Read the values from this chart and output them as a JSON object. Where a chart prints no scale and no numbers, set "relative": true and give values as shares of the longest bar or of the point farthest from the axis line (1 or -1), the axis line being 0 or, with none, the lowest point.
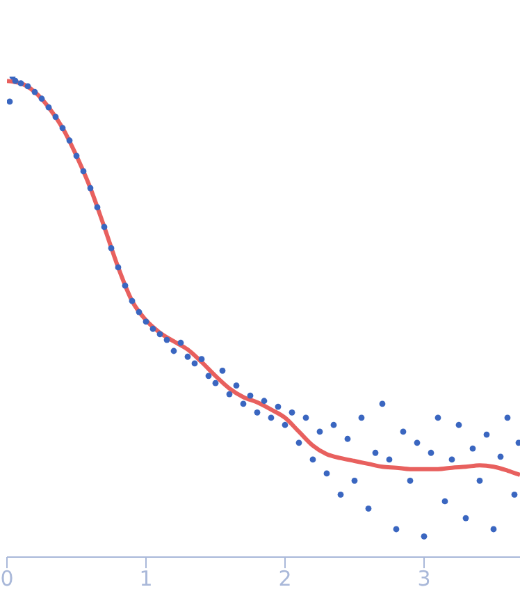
{
  "chart_data": {
    "type": "scatter",
    "relative": true,
    "xlim": [
      0,
      3.69
    ],
    "xticks": [
      0,
      1,
      2,
      3
    ],
    "grid": false,
    "legend": false,
    "x": [
      0.02,
      0.04,
      0.06,
      0.1,
      0.15,
      0.2,
      0.25,
      0.3,
      0.35,
      0.4,
      0.45,
      0.5,
      0.55,
      0.6,
      0.65,
      0.7,
      0.75,
      0.8,
      0.85,
      0.9,
      0.95,
      1.0,
      1.05,
      1.1,
      1.15,
      1.2,
      1.25,
      1.3,
      1.35,
      1.4,
      1.45,
      1.5,
      1.55,
      1.6,
      1.65,
      1.7,
      1.75,
      1.8,
      1.85,
      1.9,
      1.95,
      2.0,
      2.05,
      2.1,
      2.15,
      2.2,
      2.25,
      2.3,
      2.35,
      2.4,
      2.45,
      2.5,
      2.55,
      2.6,
      2.65,
      2.7,
      2.75,
      2.8,
      2.85,
      2.9,
      2.95,
      3.0,
      3.05,
      3.1,
      3.15,
      3.2,
      3.25,
      3.3,
      3.35,
      3.4,
      3.45,
      3.5,
      3.55,
      3.6,
      3.65,
      3.68
    ],
    "series": [
      {
        "marker": "circle",
        "color": "#3a66c0",
        "values": [
          0.948,
          1,
          0.991,
          0.986,
          0.98,
          0.968,
          0.954,
          0.936,
          0.916,
          0.893,
          0.867,
          0.835,
          0.803,
          0.768,
          0.728,
          0.687,
          0.643,
          0.603,
          0.565,
          0.533,
          0.51,
          0.49,
          0.475,
          0.464,
          0.452,
          0.429,
          0.446,
          0.417,
          0.403,
          0.412,
          0.377,
          0.362,
          0.388,
          0.339,
          0.357,
          0.319,
          0.336,
          0.301,
          0.325,
          0.29,
          0.313,
          0.275,
          0.301,
          0.238,
          0.29,
          0.203,
          0.261,
          0.174,
          0.275,
          0.13,
          0.246,
          0.159,
          0.29,
          0.101,
          0.217,
          0.319,
          0.203,
          0.058,
          0.261,
          0.159,
          0.238,
          0.043,
          0.217,
          0.29,
          0.116,
          0.203,
          0.275,
          0.081,
          0.226,
          0.159,
          0.255,
          0.058,
          0.209,
          0.29,
          0.13,
          0.238
        ]
      },
      {
        "type": "line",
        "color": "#e8605e",
        "x": [
          0,
          0.1,
          0.2,
          0.3,
          0.4,
          0.5,
          0.6,
          0.7,
          0.8,
          0.9,
          1.0,
          1.1,
          1.2,
          1.3,
          1.4,
          1.5,
          1.6,
          1.7,
          1.8,
          1.9,
          2.0,
          2.1,
          2.2,
          2.3,
          2.4,
          2.5,
          2.6,
          2.7,
          2.8,
          2.9,
          3.0,
          3.1,
          3.2,
          3.3,
          3.4,
          3.5,
          3.6,
          3.69
        ],
        "values": [
          0.991,
          0.986,
          0.968,
          0.936,
          0.893,
          0.835,
          0.768,
          0.687,
          0.603,
          0.533,
          0.493,
          0.467,
          0.449,
          0.432,
          0.406,
          0.377,
          0.351,
          0.333,
          0.322,
          0.307,
          0.29,
          0.261,
          0.232,
          0.214,
          0.206,
          0.2,
          0.194,
          0.188,
          0.186,
          0.183,
          0.183,
          0.183,
          0.186,
          0.188,
          0.191,
          0.188,
          0.18,
          0.171
        ]
      }
    ]
  }
}
